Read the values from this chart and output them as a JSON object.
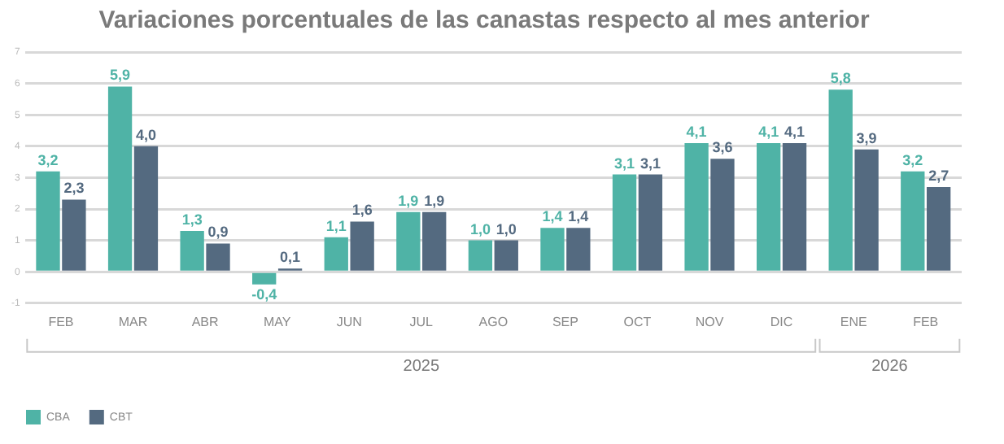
{
  "chart_data": {
    "type": "bar",
    "title": "Variaciones porcentuales de las canastas respecto al mes anterior",
    "categories": [
      "FEB",
      "MAR",
      "ABR",
      "MAY",
      "JUN",
      "JUL",
      "AGO",
      "SEP",
      "OCT",
      "NOV",
      "DIC",
      "ENE",
      "FEB"
    ],
    "series": [
      {
        "name": "CBA",
        "color": "#4fb3a6",
        "values": [
          3.2,
          5.9,
          1.3,
          -0.4,
          1.1,
          1.9,
          1.0,
          1.4,
          3.1,
          4.1,
          4.1,
          5.8,
          3.2
        ],
        "value_labels": [
          "3,2",
          "5,9",
          "1,3",
          "-0,4",
          "1,1",
          "1,9",
          "1,0",
          "1,4",
          "3,1",
          "4,1",
          "4,1",
          "5,8",
          "3,2"
        ]
      },
      {
        "name": "CBT",
        "color": "#546a80",
        "values": [
          2.3,
          4.0,
          0.9,
          0.1,
          1.6,
          1.9,
          1.0,
          1.4,
          3.1,
          3.6,
          4.1,
          3.9,
          2.7
        ],
        "value_labels": [
          "2,3",
          "4,0",
          "0,9",
          "0,1",
          "1,6",
          "1,9",
          "1,0",
          "1,4",
          "3,1",
          "3,6",
          "4,1",
          "3,9",
          "2,7"
        ]
      }
    ],
    "ylim": [
      -1,
      7
    ],
    "yticks": [
      -1,
      0,
      1,
      2,
      3,
      4,
      5,
      6,
      7
    ],
    "grid": "y",
    "legend": "bottom left",
    "annotations": [
      "2025",
      "2026"
    ]
  }
}
